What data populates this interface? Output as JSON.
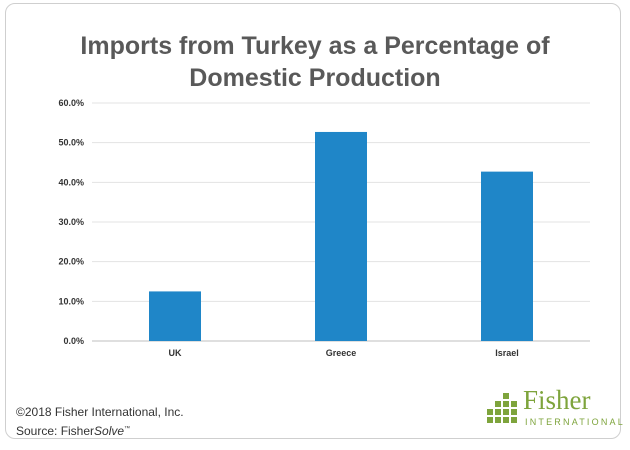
{
  "title_line1": "Imports from Turkey as a Percentage of",
  "title_line2": "Domestic Production",
  "chart_data": {
    "type": "bar",
    "title": "Imports from Turkey as a Percentage of Domestic Production",
    "categories": [
      "UK",
      "Greece",
      "Israel"
    ],
    "values": [
      12.5,
      52.7,
      42.7
    ],
    "ylim": [
      0,
      60
    ],
    "yticks": [
      "0.0%",
      "10.0%",
      "20.0%",
      "30.0%",
      "40.0%",
      "50.0%",
      "60.0%"
    ],
    "grid": true,
    "bar_color": "#1f86c8",
    "grid_color": "#e3e3e3"
  },
  "footer": {
    "copyright": "©2018 Fisher International, Inc.",
    "source_prefix": "Source: Fisher",
    "source_italic": "Solve",
    "source_tm": "™"
  },
  "logo": {
    "word": "Fisher",
    "sub": "INTERNATIONAL",
    "color": "#7ea43c"
  }
}
